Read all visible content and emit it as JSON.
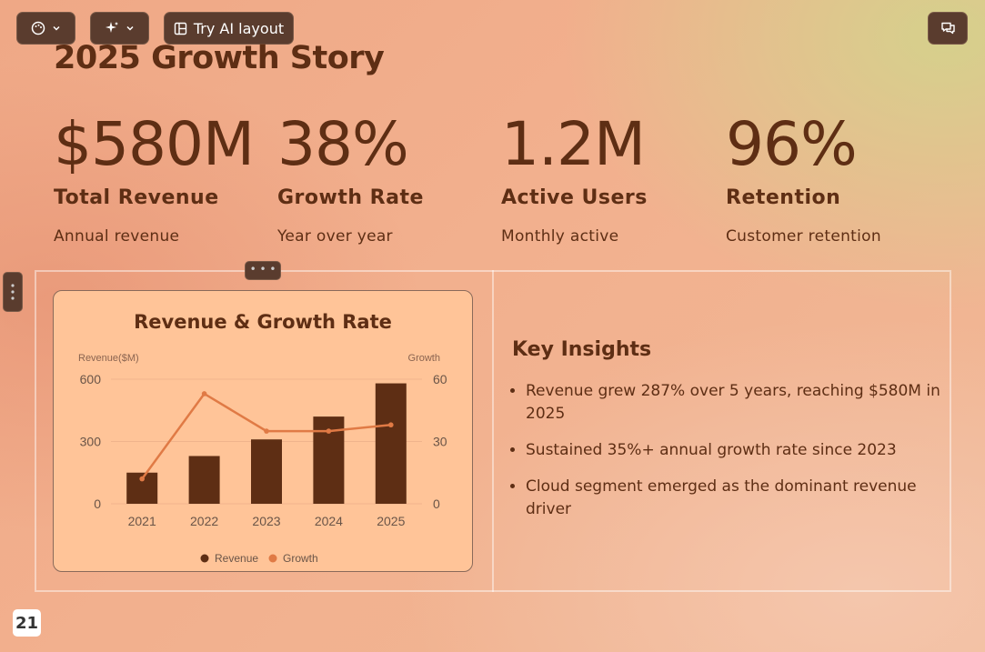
{
  "toolbar": {
    "theme_icon": "palette-icon",
    "ai_icon": "sparkle-icon",
    "try_ai_label": "Try AI layout",
    "layout_icon": "layout-icon",
    "comment_icon": "comment-icon"
  },
  "slide": {
    "title": "2025 Growth Story",
    "stats": [
      {
        "value": "$580M",
        "label": "Total Revenue",
        "sub": "Annual revenue"
      },
      {
        "value": "38%",
        "label": "Growth Rate",
        "sub": "Year over year"
      },
      {
        "value": "1.2M",
        "label": "Active Users",
        "sub": "Monthly active"
      },
      {
        "value": "96%",
        "label": "Retention",
        "sub": "Customer retention"
      }
    ],
    "insights_title": "Key Insights",
    "insights": [
      "Revenue grew 287% over 5 years, reaching $580M in 2025",
      "Sustained 35%+ annual growth rate since 2023",
      "Cloud segment emerged as the dominant revenue driver"
    ],
    "page_number": "21"
  },
  "chart_data": {
    "type": "bar",
    "title": "Revenue & Growth Rate",
    "categories": [
      "2021",
      "2022",
      "2023",
      "2024",
      "2025"
    ],
    "series": [
      {
        "name": "Revenue",
        "type": "bar",
        "axis": "left",
        "color": "#5e2e14",
        "values": [
          150,
          230,
          310,
          420,
          580
        ]
      },
      {
        "name": "Growth",
        "type": "line",
        "axis": "right",
        "color": "#e07a45",
        "values": [
          12,
          53,
          35,
          35,
          38
        ]
      }
    ],
    "ylabel": "Revenue($M)",
    "ylabel_right": "Growth",
    "ylim": [
      0,
      600
    ],
    "ylim_right": [
      0,
      60
    ],
    "yticks": [
      "0",
      "300",
      "600"
    ],
    "yticks_right": [
      "0",
      "30",
      "60"
    ],
    "grid": true,
    "legend": "bottom"
  }
}
